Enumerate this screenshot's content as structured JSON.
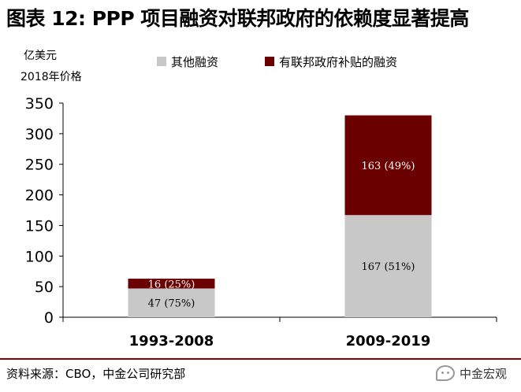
{
  "title": "图表 12: PPP 项目融资对联邦政府的依赖度显著提高",
  "unit_line1": "亿美元",
  "unit_line2": "2018年价格",
  "source": "资料来源：CBO，中金公司研究部",
  "watermark": "中金宏观",
  "chart_data": {
    "type": "bar",
    "stacked": true,
    "categories": [
      "1993-2008",
      "2009-2019"
    ],
    "series": [
      {
        "name": "其他融资",
        "values": [
          47,
          167
        ],
        "labels": [
          "47 (75%)",
          "167 (51%)"
        ],
        "color": "#c8c8c8"
      },
      {
        "name": "有联邦政府补贴的融资",
        "values": [
          16,
          163
        ],
        "labels": [
          "16 (25%)",
          "163 (49%)"
        ],
        "color": "#6b0000"
      }
    ],
    "ylim": [
      0,
      350
    ],
    "yticks": [
      0,
      50,
      100,
      150,
      200,
      250,
      300,
      350
    ],
    "grid": false,
    "legend": "top"
  }
}
